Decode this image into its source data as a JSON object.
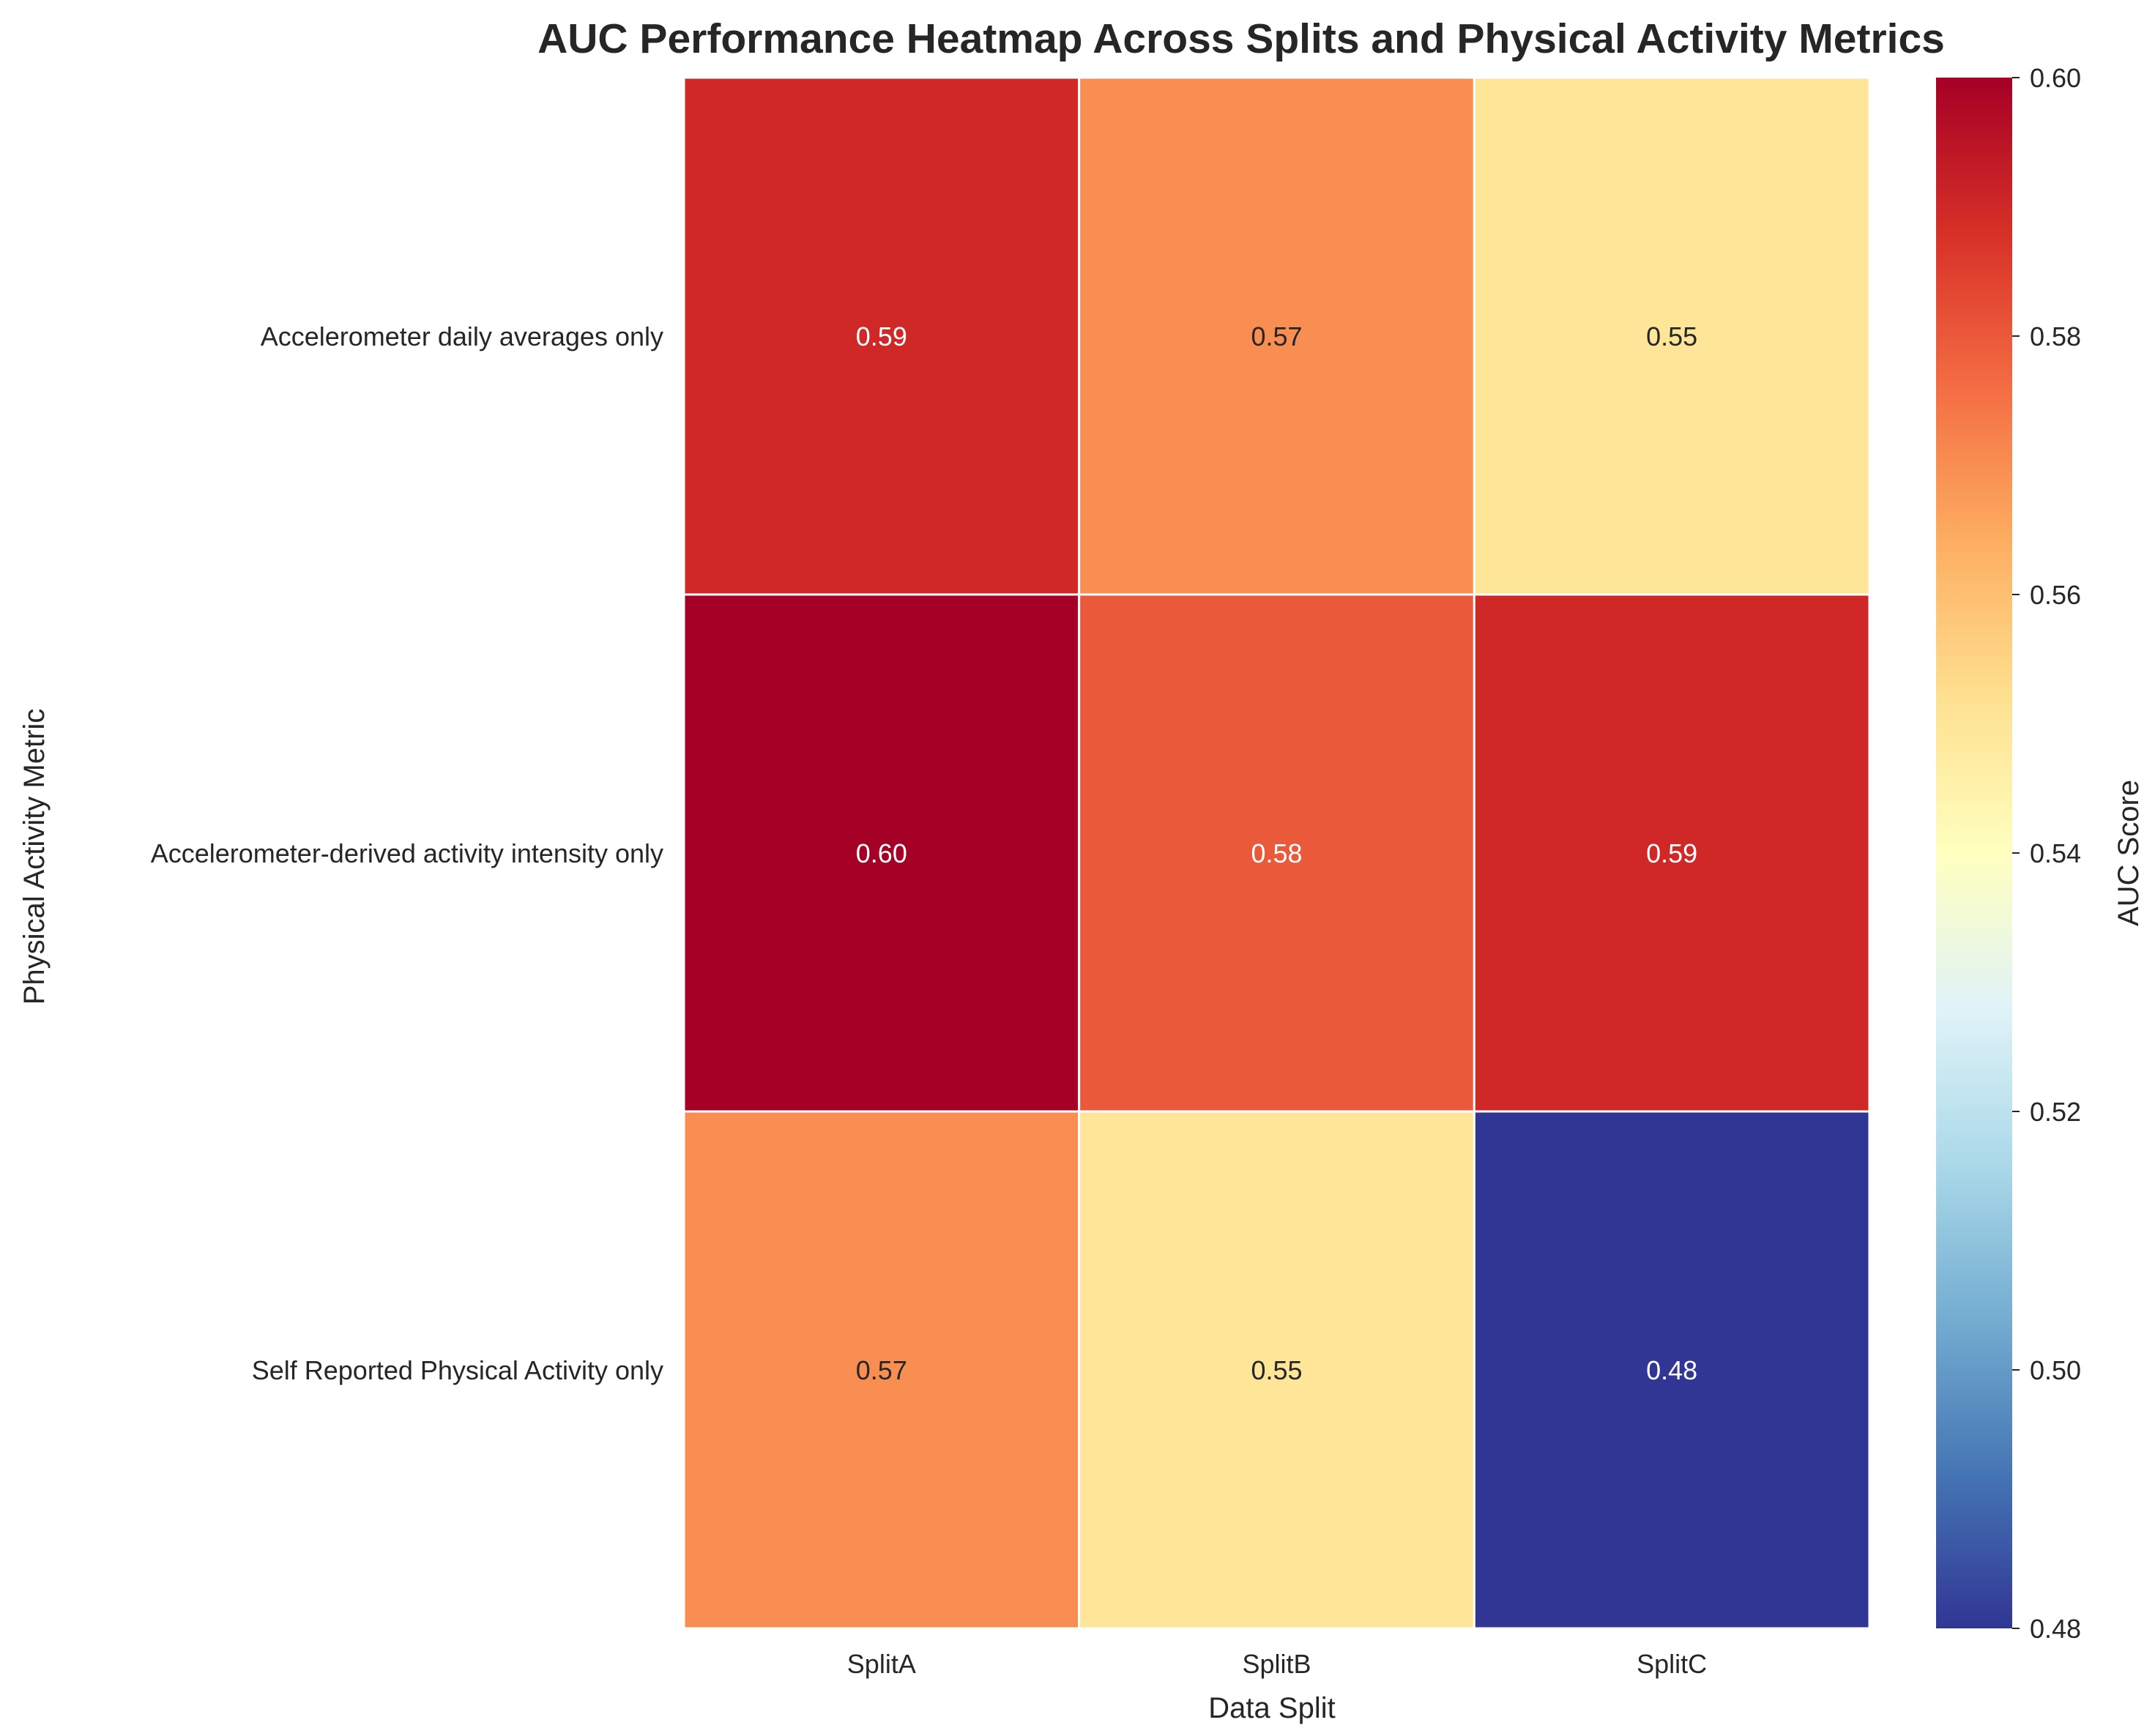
{
  "chart_data": {
    "type": "heatmap",
    "title": "AUC Performance Heatmap Across Splits and Physical Activity Metrics",
    "xlabel": "Data Split",
    "ylabel": "Physical Activity Metric",
    "x_categories": [
      "SplitA",
      "SplitB",
      "SplitC"
    ],
    "y_categories": [
      "Accelerometer daily averages only",
      "Accelerometer-derived activity intensity only",
      "Self Reported Physical Activity only"
    ],
    "values": [
      [
        0.59,
        0.57,
        0.55
      ],
      [
        0.6,
        0.58,
        0.59
      ],
      [
        0.57,
        0.55,
        0.48
      ]
    ],
    "annotations": [
      [
        "0.59",
        "0.57",
        "0.55"
      ],
      [
        "0.60",
        "0.58",
        "0.59"
      ],
      [
        "0.57",
        "0.55",
        "0.48"
      ]
    ],
    "colorbar": {
      "label": "AUC Score",
      "range": [
        0.48,
        0.6
      ],
      "ticks": [
        "0.48",
        "0.50",
        "0.52",
        "0.54",
        "0.56",
        "0.58",
        "0.60"
      ],
      "colormap": "RdYlBu_r"
    },
    "grid": false,
    "cell_border_color": "#ffffff"
  }
}
